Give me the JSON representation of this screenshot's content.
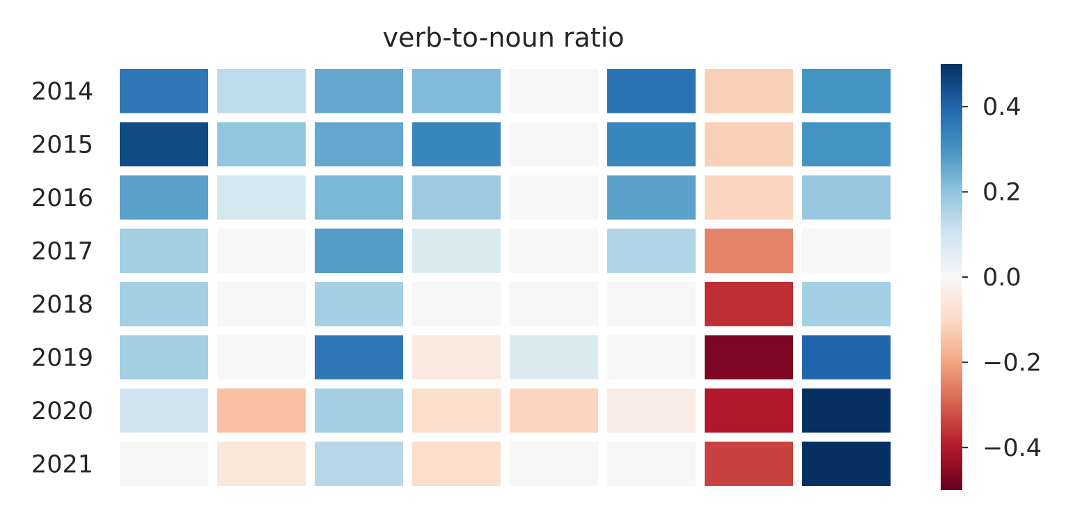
{
  "chart_data": {
    "type": "heatmap",
    "title": "verb-to-noun ratio",
    "xlabel": "",
    "ylabel": "",
    "rows": [
      "2014",
      "2015",
      "2016",
      "2017",
      "2018",
      "2019",
      "2020",
      "2021"
    ],
    "columns": [
      "",
      "",
      "",
      "",
      "",
      "",
      "",
      ""
    ],
    "values": [
      [
        0.36,
        0.13,
        0.26,
        0.22,
        0.0,
        0.37,
        -0.12,
        0.3
      ],
      [
        0.45,
        0.2,
        0.26,
        0.33,
        0.0,
        0.33,
        -0.12,
        0.3
      ],
      [
        0.27,
        0.09,
        0.23,
        0.18,
        0.0,
        0.27,
        -0.11,
        0.19
      ],
      [
        0.17,
        0.0,
        0.28,
        0.07,
        0.0,
        0.15,
        -0.25,
        0.0
      ],
      [
        0.17,
        0.0,
        0.17,
        0.0,
        0.0,
        0.0,
        -0.37,
        0.17
      ],
      [
        0.17,
        0.0,
        0.36,
        -0.05,
        0.07,
        0.0,
        -0.47,
        0.4
      ],
      [
        0.1,
        -0.15,
        0.17,
        -0.09,
        -0.11,
        -0.04,
        -0.4,
        0.5
      ],
      [
        0.0,
        -0.06,
        0.14,
        -0.09,
        0.0,
        0.0,
        -0.34,
        0.51
      ]
    ],
    "colorbar": {
      "min": -0.5,
      "max": 0.5,
      "ticks": [
        "−0.4",
        "−0.2",
        "0.0",
        "0.2",
        "0.4"
      ],
      "tick_values": [
        -0.4,
        -0.2,
        0.0,
        0.2,
        0.4
      ],
      "colormap": "RdBu"
    },
    "grid": false,
    "legend": "colorbar-right"
  },
  "colors": {
    "text": "#262626",
    "cell_border": "#ffffff",
    "zero_cell": "#f5f6f5"
  }
}
